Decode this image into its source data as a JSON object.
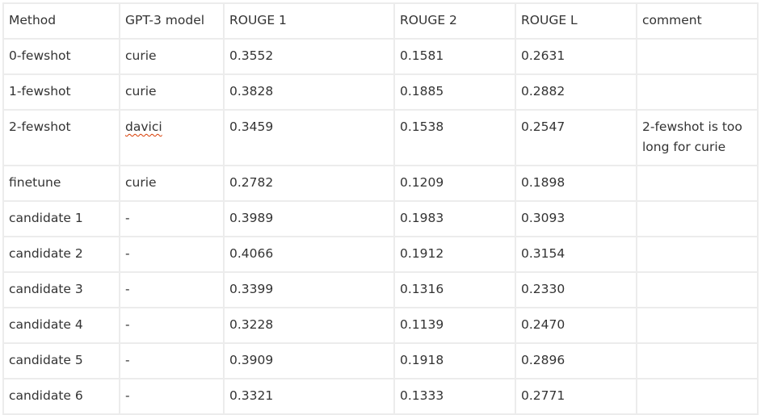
{
  "table": {
    "headers": [
      "Method",
      "GPT-3 model",
      "ROUGE 1",
      "ROUGE 2",
      "ROUGE L",
      "comment"
    ],
    "rows": [
      [
        "0-fewshot",
        "curie",
        "0.3552",
        "0.1581",
        "0.2631",
        ""
      ],
      [
        "1-fewshot",
        "curie",
        "0.3828",
        "0.1885",
        "0.2882",
        ""
      ],
      [
        "2-fewshot",
        "davici",
        "0.3459",
        "0.1538",
        "0.2547",
        "2-fewshot is too long for curie"
      ],
      [
        "finetune",
        "curie",
        "0.2782",
        "0.1209",
        "0.1898",
        ""
      ],
      [
        "candidate 1",
        "-",
        "0.3989",
        "0.1983",
        "0.3093",
        ""
      ],
      [
        "candidate 2",
        "-",
        "0.4066",
        "0.1912",
        "0.3154",
        ""
      ],
      [
        "candidate 3",
        "-",
        "0.3399",
        "0.1316",
        "0.2330",
        ""
      ],
      [
        "candidate 4",
        "-",
        "0.3228",
        "0.1139",
        "0.2470",
        ""
      ],
      [
        "candidate 5",
        "-",
        "0.3909",
        "0.1918",
        "0.2896",
        ""
      ],
      [
        "candidate 6",
        "-",
        "0.3321",
        "0.1333",
        "0.2771",
        ""
      ]
    ]
  }
}
